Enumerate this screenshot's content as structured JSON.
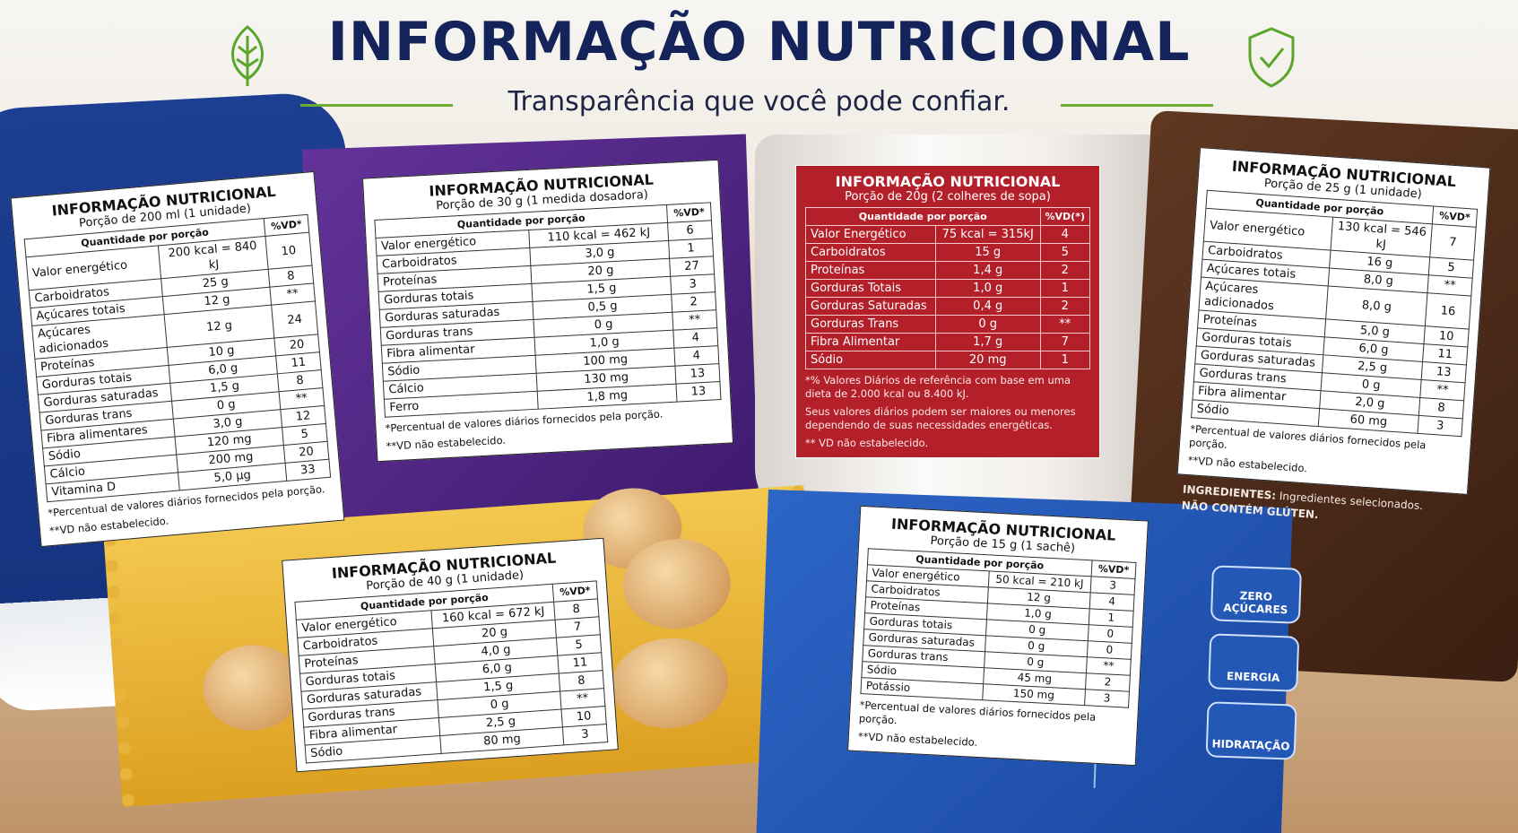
{
  "header": {
    "title": "INFORMAÇÃO NUTRICIONAL",
    "subtitle": "Transparência que você pode confiar."
  },
  "products": [
    {
      "title": "INFORMAÇÃO NUTRICIONAL",
      "portion": "Porção de 200 ml (1 unidade)",
      "column_header": "Quantidade por porção",
      "vd_header": "%VD*",
      "rows": [
        [
          "Valor energético",
          "200 kcal = 840 kJ",
          "10"
        ],
        [
          "Carboidratos",
          "25 g",
          "8"
        ],
        [
          "Açúcares totais",
          "12 g",
          "**"
        ],
        [
          "Açúcares adicionados",
          "12 g",
          "24"
        ],
        [
          "Proteínas",
          "10 g",
          "20"
        ],
        [
          "Gorduras totais",
          "6,0 g",
          "11"
        ],
        [
          "Gorduras saturadas",
          "1,5 g",
          "8"
        ],
        [
          "Gorduras trans",
          "0 g",
          "**"
        ],
        [
          "Fibra alimentares",
          "3,0 g",
          "12"
        ],
        [
          "Sódio",
          "120 mg",
          "5"
        ],
        [
          "Cálcio",
          "200 mg",
          "20"
        ],
        [
          "Vitamina D",
          "5,0 µg",
          "33"
        ]
      ],
      "footnotes": [
        "*Percentual de valores diários fornecidos pela porção.",
        "**VD não estabelecido."
      ]
    },
    {
      "title": "INFORMAÇÃO NUTRICIONAL",
      "portion": "Porção de 30 g (1 medida dosadora)",
      "column_header": "Quantidade por porção",
      "vd_header": "%VD*",
      "rows": [
        [
          "Valor energético",
          "110 kcal = 462 kJ",
          "6"
        ],
        [
          "Carboidratos",
          "3,0 g",
          "1"
        ],
        [
          "Proteínas",
          "20 g",
          "27"
        ],
        [
          "Gorduras totais",
          "1,5 g",
          "3"
        ],
        [
          "Gorduras saturadas",
          "0,5 g",
          "2"
        ],
        [
          "Gorduras trans",
          "0 g",
          "**"
        ],
        [
          "Fibra alimentar",
          "1,0 g",
          "4"
        ],
        [
          "Sódio",
          "100 mg",
          "4"
        ],
        [
          "Cálcio",
          "130 mg",
          "13"
        ],
        [
          "Ferro",
          "1,8 mg",
          "13"
        ]
      ],
      "footnotes": [
        "*Percentual de valores diários fornecidos pela porção.",
        "**VD não estabelecido."
      ]
    },
    {
      "title": "INFORMAÇÃO NUTRICIONAL",
      "portion": "Porção de 20g (2 colheres de sopa)",
      "column_header": "Quantidade por porção",
      "vd_header": "%VD(*)",
      "rows": [
        [
          "Valor Energético",
          "75 kcal = 315kJ",
          "4"
        ],
        [
          "Carboidratos",
          "15 g",
          "5"
        ],
        [
          "Proteínas",
          "1,4 g",
          "2"
        ],
        [
          "Gorduras Totais",
          "1,0 g",
          "1"
        ],
        [
          "Gorduras Saturadas",
          "0,4 g",
          "2"
        ],
        [
          "Gorduras Trans",
          "0 g",
          "**"
        ],
        [
          "Fibra Alimentar",
          "1,7 g",
          "7"
        ],
        [
          "Sódio",
          "20 mg",
          "1"
        ]
      ],
      "footnotes": [
        "*% Valores Diários de referência com base em uma dieta de 2.000 kcal ou 8.400 kJ.",
        "Seus valores diários podem ser maiores ou menores dependendo de suas necessidades energéticas.",
        "** VD não estabelecido."
      ]
    },
    {
      "title": "INFORMAÇÃO NUTRICIONAL",
      "portion": "Porção de 25 g (1 unidade)",
      "column_header": "Quantidade por porção",
      "vd_header": "%VD*",
      "rows": [
        [
          "Valor energético",
          "130 kcal = 546 kJ",
          "7"
        ],
        [
          "Carboidratos",
          "16 g",
          "5"
        ],
        [
          "Açúcares totais",
          "8,0 g",
          "**"
        ],
        [
          "Açúcares adicionados",
          "8,0 g",
          "16"
        ],
        [
          "Proteínas",
          "5,0 g",
          "10"
        ],
        [
          "Gorduras totais",
          "6,0 g",
          "11"
        ],
        [
          "Gorduras saturadas",
          "2,5 g",
          "13"
        ],
        [
          "Gorduras trans",
          "0 g",
          "**"
        ],
        [
          "Fibra alimentar",
          "2,0 g",
          "8"
        ],
        [
          "Sódio",
          "60 mg",
          "3"
        ]
      ],
      "footnotes": [
        "*Percentual de valores diários fornecidos pela porção.",
        "**VD não estabelecido."
      ],
      "ingredients_label": "INGREDIENTES:",
      "ingredients": "Ingredientes selecionados.",
      "gluten": "NÃO CONTÉM GLÚTEN."
    },
    {
      "title": "INFORMAÇÃO NUTRICIONAL",
      "portion": "Porção de 40 g (1 unidade)",
      "column_header": "Quantidade por porção",
      "vd_header": "%VD*",
      "rows": [
        [
          "Valor energético",
          "160 kcal = 672 kJ",
          "8"
        ],
        [
          "Carboidratos",
          "20 g",
          "7"
        ],
        [
          "Proteínas",
          "4,0 g",
          "5"
        ],
        [
          "Gorduras totais",
          "6,0 g",
          "11"
        ],
        [
          "Gorduras saturadas",
          "1,5 g",
          "8"
        ],
        [
          "Gorduras trans",
          "0 g",
          "**"
        ],
        [
          "Fibra alimentar",
          "2,5 g",
          "10"
        ],
        [
          "Sódio",
          "80 mg",
          "3"
        ]
      ],
      "footnotes": []
    },
    {
      "title": "INFORMAÇÃO NUTRICIONAL",
      "portion": "Porção de 15 g (1 sachê)",
      "column_header": "Quantidade por porção",
      "vd_header": "%VD*",
      "rows": [
        [
          "Valor energético",
          "50 kcal = 210 kJ",
          "3"
        ],
        [
          "Carboidratos",
          "12 g",
          "4"
        ],
        [
          "Proteínas",
          "1,0 g",
          "1"
        ],
        [
          "Gorduras totais",
          "0 g",
          "0"
        ],
        [
          "Gorduras saturadas",
          "0 g",
          "0"
        ],
        [
          "Gorduras trans",
          "0 g",
          "**"
        ],
        [
          "Sódio",
          "45 mg",
          "2"
        ],
        [
          "Potássio",
          "150 mg",
          "3"
        ]
      ],
      "footnotes": [
        "*Percentual de valores diários fornecidos pela porção.",
        "**VD não estabelecido."
      ],
      "badges": [
        "ZERO AÇÚCARES",
        "ENERGIA",
        "HIDRATAÇÃO"
      ]
    }
  ]
}
